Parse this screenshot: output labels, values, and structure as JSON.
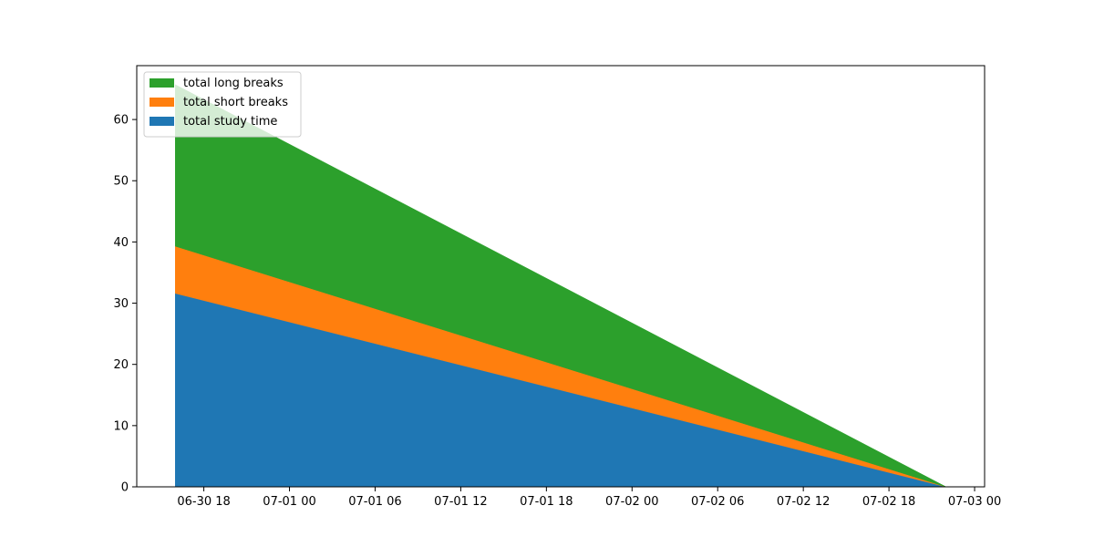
{
  "chart_data": {
    "type": "area",
    "stacked": true,
    "x": [
      "2020-06-30 16:00",
      "2020-07-02 22:00"
    ],
    "series": [
      {
        "name": "total study time",
        "values": [
          31.6,
          0
        ],
        "color": "#1f77b4"
      },
      {
        "name": "total short breaks",
        "values": [
          7.7,
          0
        ],
        "color": "#ff7f0e"
      },
      {
        "name": "total long breaks",
        "values": [
          26.4,
          0
        ],
        "color": "#2ca02c"
      }
    ],
    "xlim": [
      "2020-06-30 13:18",
      "2020-07-03 00:42"
    ],
    "ylim": [
      0,
      68.8
    ],
    "x_ticks": [
      {
        "value": "2020-06-30 18:00",
        "label": "06-30 18"
      },
      {
        "value": "2020-07-01 00:00",
        "label": "07-01 00"
      },
      {
        "value": "2020-07-01 06:00",
        "label": "07-01 06"
      },
      {
        "value": "2020-07-01 12:00",
        "label": "07-01 12"
      },
      {
        "value": "2020-07-01 18:00",
        "label": "07-01 18"
      },
      {
        "value": "2020-07-02 00:00",
        "label": "07-02 00"
      },
      {
        "value": "2020-07-02 06:00",
        "label": "07-02 06"
      },
      {
        "value": "2020-07-02 12:00",
        "label": "07-02 12"
      },
      {
        "value": "2020-07-02 18:00",
        "label": "07-02 18"
      },
      {
        "value": "2020-07-03 00:00",
        "label": "07-03 00"
      }
    ],
    "y_ticks": [
      0,
      10,
      20,
      30,
      40,
      50,
      60
    ],
    "grid": false,
    "legend_placement": "upper-left",
    "legend_order": [
      "total long breaks",
      "total short breaks",
      "total study time"
    ]
  }
}
